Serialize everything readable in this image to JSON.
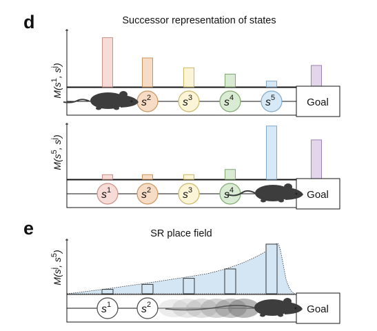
{
  "panels": [
    {
      "id": "d-top",
      "letter": "d",
      "title": "Successor representation of states",
      "ylabel": {
        "main": "M(s",
        "sup1": "1",
        "mid": ", s",
        "sup2": "j",
        "end": ")"
      },
      "animal_position": "start",
      "states": [
        {
          "name": "s",
          "sup": "2",
          "fill": "#f6dcc4",
          "stroke": "#c8955e"
        },
        {
          "name": "s",
          "sup": "3",
          "fill": "#fbf4d7",
          "stroke": "#c9b766"
        },
        {
          "name": "s",
          "sup": "4",
          "fill": "#d9ebd3",
          "stroke": "#7fa96f"
        },
        {
          "name": "s",
          "sup": "5",
          "fill": "#d7e9f6",
          "stroke": "#7ea9c9"
        }
      ],
      "goal": "Goal",
      "bars": [
        {
          "value": 0.85,
          "fill": "#f6dbd6",
          "stroke": "#c98f86"
        },
        {
          "value": 0.5,
          "fill": "#f6dcc4",
          "stroke": "#c8955e"
        },
        {
          "value": 0.33,
          "fill": "#fbf4d7",
          "stroke": "#c9b766"
        },
        {
          "value": 0.22,
          "fill": "#d9ebd3",
          "stroke": "#7fa96f"
        },
        {
          "value": 0.1,
          "fill": "#d7e9f6",
          "stroke": "#7ea9c9"
        },
        {
          "value": 0.37,
          "fill": "#e3d5ea",
          "stroke": "#9c7fae"
        }
      ]
    },
    {
      "id": "d-bottom",
      "letter": "",
      "title": "",
      "ylabel": {
        "main": "M(s",
        "sup1": "5",
        "mid": ", s",
        "sup2": "j",
        "end": ")"
      },
      "animal_position": "s5",
      "states": [
        {
          "name": "s",
          "sup": "1",
          "fill": "#f6dbd6",
          "stroke": "#c98f86"
        },
        {
          "name": "s",
          "sup": "2",
          "fill": "#f6dcc4",
          "stroke": "#c8955e"
        },
        {
          "name": "s",
          "sup": "3",
          "fill": "#fbf4d7",
          "stroke": "#c9b766"
        },
        {
          "name": "s",
          "sup": "4",
          "fill": "#d9ebd3",
          "stroke": "#7fa96f"
        }
      ],
      "goal": "Goal",
      "bars": [
        {
          "value": 0.08,
          "fill": "#f6dbd6",
          "stroke": "#c98f86"
        },
        {
          "value": 0.08,
          "fill": "#f6dcc4",
          "stroke": "#c8955e"
        },
        {
          "value": 0.08,
          "fill": "#fbf4d7",
          "stroke": "#c9b766"
        },
        {
          "value": 0.17,
          "fill": "#d9ebd3",
          "stroke": "#7fa96f"
        },
        {
          "value": 0.92,
          "fill": "#d7e9f6",
          "stroke": "#7ea9c9"
        },
        {
          "value": 0.68,
          "fill": "#e3d5ea",
          "stroke": "#9c7fae"
        }
      ]
    },
    {
      "id": "e",
      "letter": "e",
      "title": "SR place field",
      "ylabel": {
        "main": "M(s",
        "sup1": "j",
        "mid": ", s",
        "sup2": "5",
        "end": ")"
      },
      "animal_position": "s5-trail",
      "states": [
        {
          "name": "s",
          "sup": "1",
          "fill": "#ffffff",
          "stroke": "#444444"
        },
        {
          "name": "s",
          "sup": "2",
          "fill": "#ffffff",
          "stroke": "#444444"
        }
      ],
      "goal": "Goal",
      "bars": [
        {
          "value": 0.08,
          "fill": "#d4e6f4",
          "stroke": "#333333"
        },
        {
          "value": 0.17,
          "fill": "#d4e6f4",
          "stroke": "#333333"
        },
        {
          "value": 0.28,
          "fill": "#d4e6f4",
          "stroke": "#333333"
        },
        {
          "value": 0.45,
          "fill": "#d4e6f4",
          "stroke": "#333333"
        },
        {
          "value": 0.9,
          "fill": "#d4e6f4",
          "stroke": "#333333"
        }
      ],
      "field_fill": "#d4e6f4"
    }
  ],
  "colors": {
    "line": "#111111",
    "track_fill": "#ffffff",
    "animal": "#3d3d3d"
  }
}
